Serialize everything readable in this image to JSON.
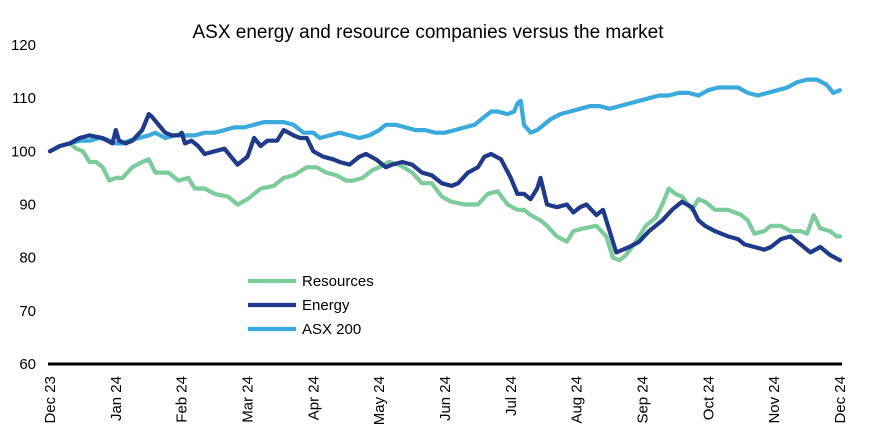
{
  "chart_data": {
    "type": "line",
    "title": "ASX energy and resource companies versus the market",
    "xlabel": "",
    "ylabel": "",
    "ylim": [
      60,
      120
    ],
    "yticks": [
      60,
      70,
      80,
      90,
      100,
      110,
      120
    ],
    "grid": false,
    "legend_position": "lower-left",
    "x_tick_labels": [
      "Dec 23",
      "Jan 24",
      "Feb 24",
      "Mar 24",
      "Apr 24",
      "May 24",
      "Jun 24",
      "Jul 24",
      "Aug 24",
      "Sep 24",
      "Oct 24",
      "Nov 24",
      "Dec 24"
    ],
    "x_units": "months since Dec 23",
    "series": [
      {
        "name": "Resources",
        "color": "#7ccb9a",
        "points": [
          [
            0,
            100
          ],
          [
            0.15,
            101
          ],
          [
            0.3,
            101.5
          ],
          [
            0.4,
            100.5
          ],
          [
            0.5,
            100
          ],
          [
            0.6,
            98
          ],
          [
            0.7,
            98
          ],
          [
            0.8,
            97
          ],
          [
            0.9,
            94.5
          ],
          [
            1.0,
            95
          ],
          [
            1.1,
            95
          ],
          [
            1.25,
            97
          ],
          [
            1.4,
            98
          ],
          [
            1.5,
            98.5
          ],
          [
            1.6,
            96
          ],
          [
            1.8,
            96
          ],
          [
            1.95,
            94.5
          ],
          [
            2.1,
            95
          ],
          [
            2.2,
            93
          ],
          [
            2.35,
            93
          ],
          [
            2.5,
            92
          ],
          [
            2.7,
            91.5
          ],
          [
            2.85,
            90
          ],
          [
            3.0,
            91
          ],
          [
            3.2,
            93
          ],
          [
            3.4,
            93.5
          ],
          [
            3.55,
            95
          ],
          [
            3.7,
            95.5
          ],
          [
            3.9,
            97
          ],
          [
            4.05,
            97
          ],
          [
            4.2,
            96
          ],
          [
            4.35,
            95.5
          ],
          [
            4.5,
            94.5
          ],
          [
            4.6,
            94.5
          ],
          [
            4.75,
            95
          ],
          [
            4.9,
            96.5
          ],
          [
            5.0,
            97
          ],
          [
            5.15,
            98
          ],
          [
            5.3,
            97.5
          ],
          [
            5.5,
            96
          ],
          [
            5.65,
            94
          ],
          [
            5.8,
            94
          ],
          [
            5.95,
            91.5
          ],
          [
            6.1,
            90.5
          ],
          [
            6.3,
            90
          ],
          [
            6.5,
            90
          ],
          [
            6.65,
            92
          ],
          [
            6.8,
            92.5
          ],
          [
            6.95,
            90
          ],
          [
            7.1,
            89
          ],
          [
            7.2,
            89
          ],
          [
            7.3,
            88
          ],
          [
            7.45,
            87
          ],
          [
            7.55,
            86
          ],
          [
            7.7,
            84
          ],
          [
            7.85,
            83
          ],
          [
            7.95,
            85
          ],
          [
            8.1,
            85.5
          ],
          [
            8.3,
            86
          ],
          [
            8.45,
            84
          ],
          [
            8.55,
            80
          ],
          [
            8.65,
            79.5
          ],
          [
            8.75,
            80.5
          ],
          [
            8.9,
            83
          ],
          [
            9.05,
            86
          ],
          [
            9.2,
            87.5
          ],
          [
            9.3,
            90
          ],
          [
            9.4,
            93
          ],
          [
            9.5,
            92
          ],
          [
            9.6,
            91.5
          ],
          [
            9.75,
            89
          ],
          [
            9.85,
            91
          ],
          [
            9.95,
            90.5
          ],
          [
            10.1,
            89
          ],
          [
            10.3,
            89
          ],
          [
            10.5,
            88
          ],
          [
            10.6,
            87
          ],
          [
            10.7,
            84.5
          ],
          [
            10.85,
            85
          ],
          [
            10.95,
            86
          ],
          [
            11.1,
            86
          ],
          [
            11.25,
            85
          ],
          [
            11.4,
            85
          ],
          [
            11.5,
            84.5
          ],
          [
            11.6,
            88
          ],
          [
            11.7,
            85.5
          ],
          [
            11.85,
            85
          ],
          [
            11.95,
            84
          ],
          [
            12.0,
            84
          ]
        ]
      },
      {
        "name": "Energy",
        "color": "#1f3a8a",
        "points": [
          [
            0,
            100
          ],
          [
            0.15,
            101
          ],
          [
            0.3,
            101.5
          ],
          [
            0.45,
            102.5
          ],
          [
            0.6,
            103
          ],
          [
            0.8,
            102.5
          ],
          [
            0.95,
            101.5
          ],
          [
            1.0,
            104
          ],
          [
            1.05,
            102
          ],
          [
            1.15,
            101.5
          ],
          [
            1.25,
            102
          ],
          [
            1.4,
            104
          ],
          [
            1.5,
            107
          ],
          [
            1.55,
            106.5
          ],
          [
            1.65,
            105
          ],
          [
            1.75,
            103.5
          ],
          [
            1.85,
            103
          ],
          [
            1.95,
            103
          ],
          [
            2.0,
            103.5
          ],
          [
            2.05,
            101.5
          ],
          [
            2.15,
            102
          ],
          [
            2.25,
            101
          ],
          [
            2.35,
            99.5
          ],
          [
            2.5,
            100
          ],
          [
            2.65,
            100.5
          ],
          [
            2.75,
            99
          ],
          [
            2.85,
            97.5
          ],
          [
            3.0,
            99
          ],
          [
            3.1,
            102.5
          ],
          [
            3.2,
            101
          ],
          [
            3.3,
            102
          ],
          [
            3.45,
            102
          ],
          [
            3.55,
            104
          ],
          [
            3.7,
            103
          ],
          [
            3.8,
            102.5
          ],
          [
            3.9,
            102.5
          ],
          [
            4.0,
            100
          ],
          [
            4.15,
            99
          ],
          [
            4.3,
            98.5
          ],
          [
            4.4,
            98
          ],
          [
            4.55,
            97.5
          ],
          [
            4.7,
            99
          ],
          [
            4.8,
            99.5
          ],
          [
            4.95,
            98.5
          ],
          [
            5.1,
            97
          ],
          [
            5.2,
            97.5
          ],
          [
            5.35,
            98
          ],
          [
            5.5,
            97.5
          ],
          [
            5.65,
            96
          ],
          [
            5.8,
            95.5
          ],
          [
            5.95,
            94
          ],
          [
            6.1,
            93.5
          ],
          [
            6.2,
            94
          ],
          [
            6.35,
            96
          ],
          [
            6.5,
            97
          ],
          [
            6.6,
            99
          ],
          [
            6.7,
            99.5
          ],
          [
            6.85,
            98.5
          ],
          [
            7.0,
            95
          ],
          [
            7.1,
            92
          ],
          [
            7.2,
            92
          ],
          [
            7.3,
            91
          ],
          [
            7.4,
            93
          ],
          [
            7.45,
            95
          ],
          [
            7.55,
            90
          ],
          [
            7.7,
            89.5
          ],
          [
            7.85,
            90
          ],
          [
            7.95,
            88.5
          ],
          [
            8.05,
            89.5
          ],
          [
            8.15,
            90
          ],
          [
            8.3,
            88
          ],
          [
            8.4,
            89
          ],
          [
            8.5,
            85
          ],
          [
            8.6,
            81
          ],
          [
            8.7,
            81.5
          ],
          [
            8.8,
            82
          ],
          [
            8.95,
            83
          ],
          [
            9.1,
            85
          ],
          [
            9.3,
            87
          ],
          [
            9.45,
            89
          ],
          [
            9.6,
            90.5
          ],
          [
            9.75,
            89.5
          ],
          [
            9.85,
            87
          ],
          [
            9.95,
            86
          ],
          [
            10.1,
            85
          ],
          [
            10.3,
            84
          ],
          [
            10.45,
            83.5
          ],
          [
            10.55,
            82.5
          ],
          [
            10.7,
            82
          ],
          [
            10.85,
            81.5
          ],
          [
            10.95,
            82
          ],
          [
            11.1,
            83.5
          ],
          [
            11.25,
            84
          ],
          [
            11.4,
            82.5
          ],
          [
            11.55,
            81
          ],
          [
            11.7,
            82
          ],
          [
            11.85,
            80.5
          ],
          [
            12.0,
            79.5
          ]
        ]
      },
      {
        "name": "ASX 200",
        "color": "#3aa9dc",
        "points": [
          [
            0,
            100
          ],
          [
            0.15,
            101
          ],
          [
            0.3,
            101.5
          ],
          [
            0.45,
            102
          ],
          [
            0.6,
            102
          ],
          [
            0.75,
            102.5
          ],
          [
            0.9,
            102
          ],
          [
            1.0,
            101.5
          ],
          [
            1.1,
            101.5
          ],
          [
            1.2,
            102
          ],
          [
            1.35,
            102.5
          ],
          [
            1.5,
            103
          ],
          [
            1.6,
            103.5
          ],
          [
            1.75,
            102.5
          ],
          [
            1.9,
            103
          ],
          [
            2.05,
            103
          ],
          [
            2.2,
            103
          ],
          [
            2.35,
            103.5
          ],
          [
            2.5,
            103.5
          ],
          [
            2.65,
            104
          ],
          [
            2.8,
            104.5
          ],
          [
            2.95,
            104.5
          ],
          [
            3.1,
            105
          ],
          [
            3.25,
            105.5
          ],
          [
            3.4,
            105.5
          ],
          [
            3.55,
            105.5
          ],
          [
            3.7,
            105
          ],
          [
            3.85,
            103.5
          ],
          [
            4.0,
            103.5
          ],
          [
            4.1,
            102.5
          ],
          [
            4.25,
            103
          ],
          [
            4.4,
            103.5
          ],
          [
            4.55,
            103
          ],
          [
            4.7,
            102.5
          ],
          [
            4.85,
            103
          ],
          [
            5.0,
            104
          ],
          [
            5.1,
            105
          ],
          [
            5.25,
            105
          ],
          [
            5.4,
            104.5
          ],
          [
            5.55,
            104
          ],
          [
            5.7,
            104
          ],
          [
            5.85,
            103.5
          ],
          [
            6.0,
            103.5
          ],
          [
            6.15,
            104
          ],
          [
            6.3,
            104.5
          ],
          [
            6.45,
            105
          ],
          [
            6.6,
            106.5
          ],
          [
            6.7,
            107.5
          ],
          [
            6.8,
            107.5
          ],
          [
            6.95,
            107
          ],
          [
            7.05,
            107.5
          ],
          [
            7.1,
            109
          ],
          [
            7.15,
            109.5
          ],
          [
            7.2,
            105
          ],
          [
            7.3,
            103.5
          ],
          [
            7.4,
            104
          ],
          [
            7.5,
            105
          ],
          [
            7.6,
            106
          ],
          [
            7.75,
            107
          ],
          [
            7.9,
            107.5
          ],
          [
            8.05,
            108
          ],
          [
            8.2,
            108.5
          ],
          [
            8.35,
            108.5
          ],
          [
            8.5,
            108
          ],
          [
            8.65,
            108.5
          ],
          [
            8.8,
            109
          ],
          [
            8.95,
            109.5
          ],
          [
            9.1,
            110
          ],
          [
            9.25,
            110.5
          ],
          [
            9.4,
            110.5
          ],
          [
            9.55,
            111
          ],
          [
            9.7,
            111
          ],
          [
            9.85,
            110.5
          ],
          [
            10.0,
            111.5
          ],
          [
            10.15,
            112
          ],
          [
            10.3,
            112
          ],
          [
            10.45,
            112
          ],
          [
            10.6,
            111
          ],
          [
            10.75,
            110.5
          ],
          [
            10.9,
            111
          ],
          [
            11.05,
            111.5
          ],
          [
            11.2,
            112
          ],
          [
            11.35,
            113
          ],
          [
            11.5,
            113.5
          ],
          [
            11.65,
            113.5
          ],
          [
            11.8,
            112.5
          ],
          [
            11.9,
            111
          ],
          [
            12.0,
            111.5
          ]
        ]
      }
    ]
  }
}
